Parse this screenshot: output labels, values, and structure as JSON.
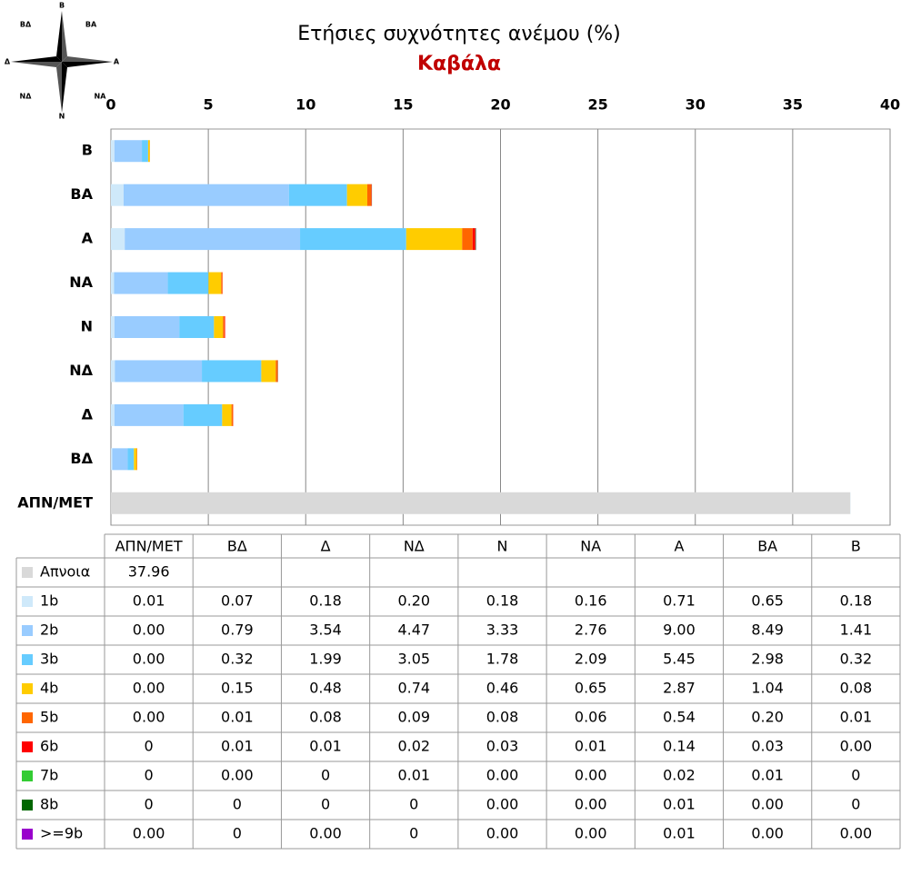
{
  "chart_data": {
    "type": "stacked-barh",
    "title": "Ετήσιες συχνότητες ανέμου (%)",
    "subtitle": "Καβάλα",
    "compass_labels": [
      "Β",
      "ΒΑ",
      "Α",
      "ΝΑ",
      "Ν",
      "ΝΔ",
      "Δ",
      "ΒΔ"
    ],
    "categories": [
      "ΑΠΝ/ΜΕΤ",
      "ΒΔ",
      "Δ",
      "ΝΔ",
      "Ν",
      "ΝΑ",
      "Α",
      "ΒΑ",
      "Β"
    ],
    "xlim": [
      0,
      40
    ],
    "xticks": [
      0,
      5,
      10,
      15,
      20,
      25,
      30,
      35,
      40
    ],
    "grid": true,
    "series": [
      {
        "name": "Απνοια",
        "color": "#d9d9d9",
        "values": [
          37.96,
          null,
          null,
          null,
          null,
          null,
          null,
          null,
          null
        ],
        "value_labels": [
          "37.96",
          null,
          null,
          null,
          null,
          null,
          null,
          null,
          null
        ]
      },
      {
        "name": "1b",
        "color": "#cfe9fa",
        "values": [
          0.01,
          0.07,
          0.18,
          0.2,
          0.18,
          0.16,
          0.71,
          0.65,
          0.18
        ],
        "value_labels": [
          "0.01",
          "0.07",
          "0.18",
          "0.20",
          "0.18",
          "0.16",
          "0.71",
          "0.65",
          "0.18"
        ]
      },
      {
        "name": "2b",
        "color": "#99ccff",
        "values": [
          0,
          0.79,
          3.54,
          4.47,
          3.33,
          2.76,
          9,
          8.49,
          1.41
        ],
        "value_labels": [
          "0.00",
          "0.79",
          "3.54",
          "4.47",
          "3.33",
          "2.76",
          "9.00",
          "8.49",
          "1.41"
        ]
      },
      {
        "name": "3b",
        "color": "#66ccff",
        "values": [
          0,
          0.32,
          1.99,
          3.05,
          1.78,
          2.09,
          5.45,
          2.98,
          0.32
        ],
        "value_labels": [
          "0.00",
          "0.32",
          "1.99",
          "3.05",
          "1.78",
          "2.09",
          "5.45",
          "2.98",
          "0.32"
        ]
      },
      {
        "name": "4b",
        "color": "#ffcc00",
        "values": [
          0,
          0.15,
          0.48,
          0.74,
          0.46,
          0.65,
          2.87,
          1.04,
          0.08
        ],
        "value_labels": [
          "0.00",
          "0.15",
          "0.48",
          "0.74",
          "0.46",
          "0.65",
          "2.87",
          "1.04",
          "0.08"
        ]
      },
      {
        "name": "5b",
        "color": "#ff6600",
        "values": [
          0,
          0.01,
          0.08,
          0.09,
          0.08,
          0.06,
          0.54,
          0.2,
          0.01
        ],
        "value_labels": [
          "0.00",
          "0.01",
          "0.08",
          "0.09",
          "0.08",
          "0.06",
          "0.54",
          "0.20",
          "0.01"
        ]
      },
      {
        "name": "6b",
        "color": "#ff0000",
        "values": [
          0,
          0.01,
          0.01,
          0.02,
          0.03,
          0.01,
          0.14,
          0.03,
          0
        ],
        "value_labels": [
          "0",
          "0.01",
          "0.01",
          "0.02",
          "0.03",
          "0.01",
          "0.14",
          "0.03",
          "0.00"
        ]
      },
      {
        "name": "7b",
        "color": "#33cc33",
        "values": [
          0,
          0,
          0,
          0.01,
          0,
          0,
          0.02,
          0.01,
          0
        ],
        "value_labels": [
          "0",
          "0.00",
          "0",
          "0.01",
          "0.00",
          "0.00",
          "0.02",
          "0.01",
          "0"
        ]
      },
      {
        "name": "8b",
        "color": "#006600",
        "values": [
          0,
          0,
          0,
          0,
          0,
          0,
          0.01,
          0,
          0
        ],
        "value_labels": [
          "0",
          "0",
          "0",
          "0",
          "0.00",
          "0.00",
          "0.01",
          "0.00",
          "0"
        ]
      },
      {
        "name": ">=9b",
        "color": "#9900cc",
        "values": [
          0,
          0,
          0,
          0,
          0,
          0,
          0.01,
          0,
          0
        ],
        "value_labels": [
          "0.00",
          "0",
          "0.00",
          "0",
          "0.00",
          "0.00",
          "0.01",
          "0.00",
          "0.00"
        ]
      }
    ]
  }
}
